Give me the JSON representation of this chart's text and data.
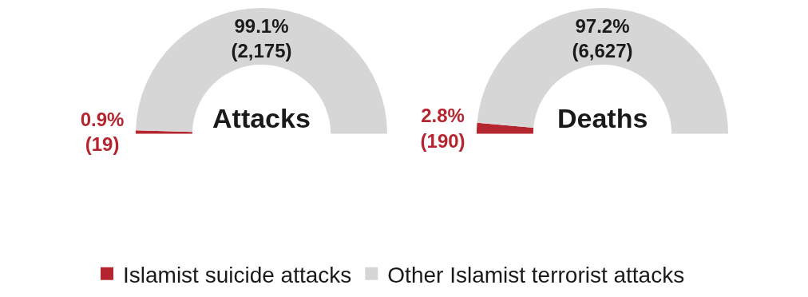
{
  "chart_data": [
    {
      "type": "donut",
      "title": "Attacks",
      "categories": [
        "Islamist suicide attacks",
        "Other Islamist terrorist attacks"
      ],
      "values": [
        19,
        2175
      ],
      "colors": [
        "#b5252f",
        "#d6d6d6"
      ],
      "value_labels": [
        "0.9%\n(19)",
        "99.1%\n(2,175)"
      ],
      "legend": "bottom"
    },
    {
      "type": "donut",
      "title": "Deaths",
      "categories": [
        null,
        null
      ],
      "values": [
        190,
        6627
      ],
      "colors": [
        "#b5252f",
        "#d6d6d6"
      ],
      "value_labels": [
        "2.8%\n(190)",
        "97.2%\n(6,627)"
      ]
    }
  ]
}
